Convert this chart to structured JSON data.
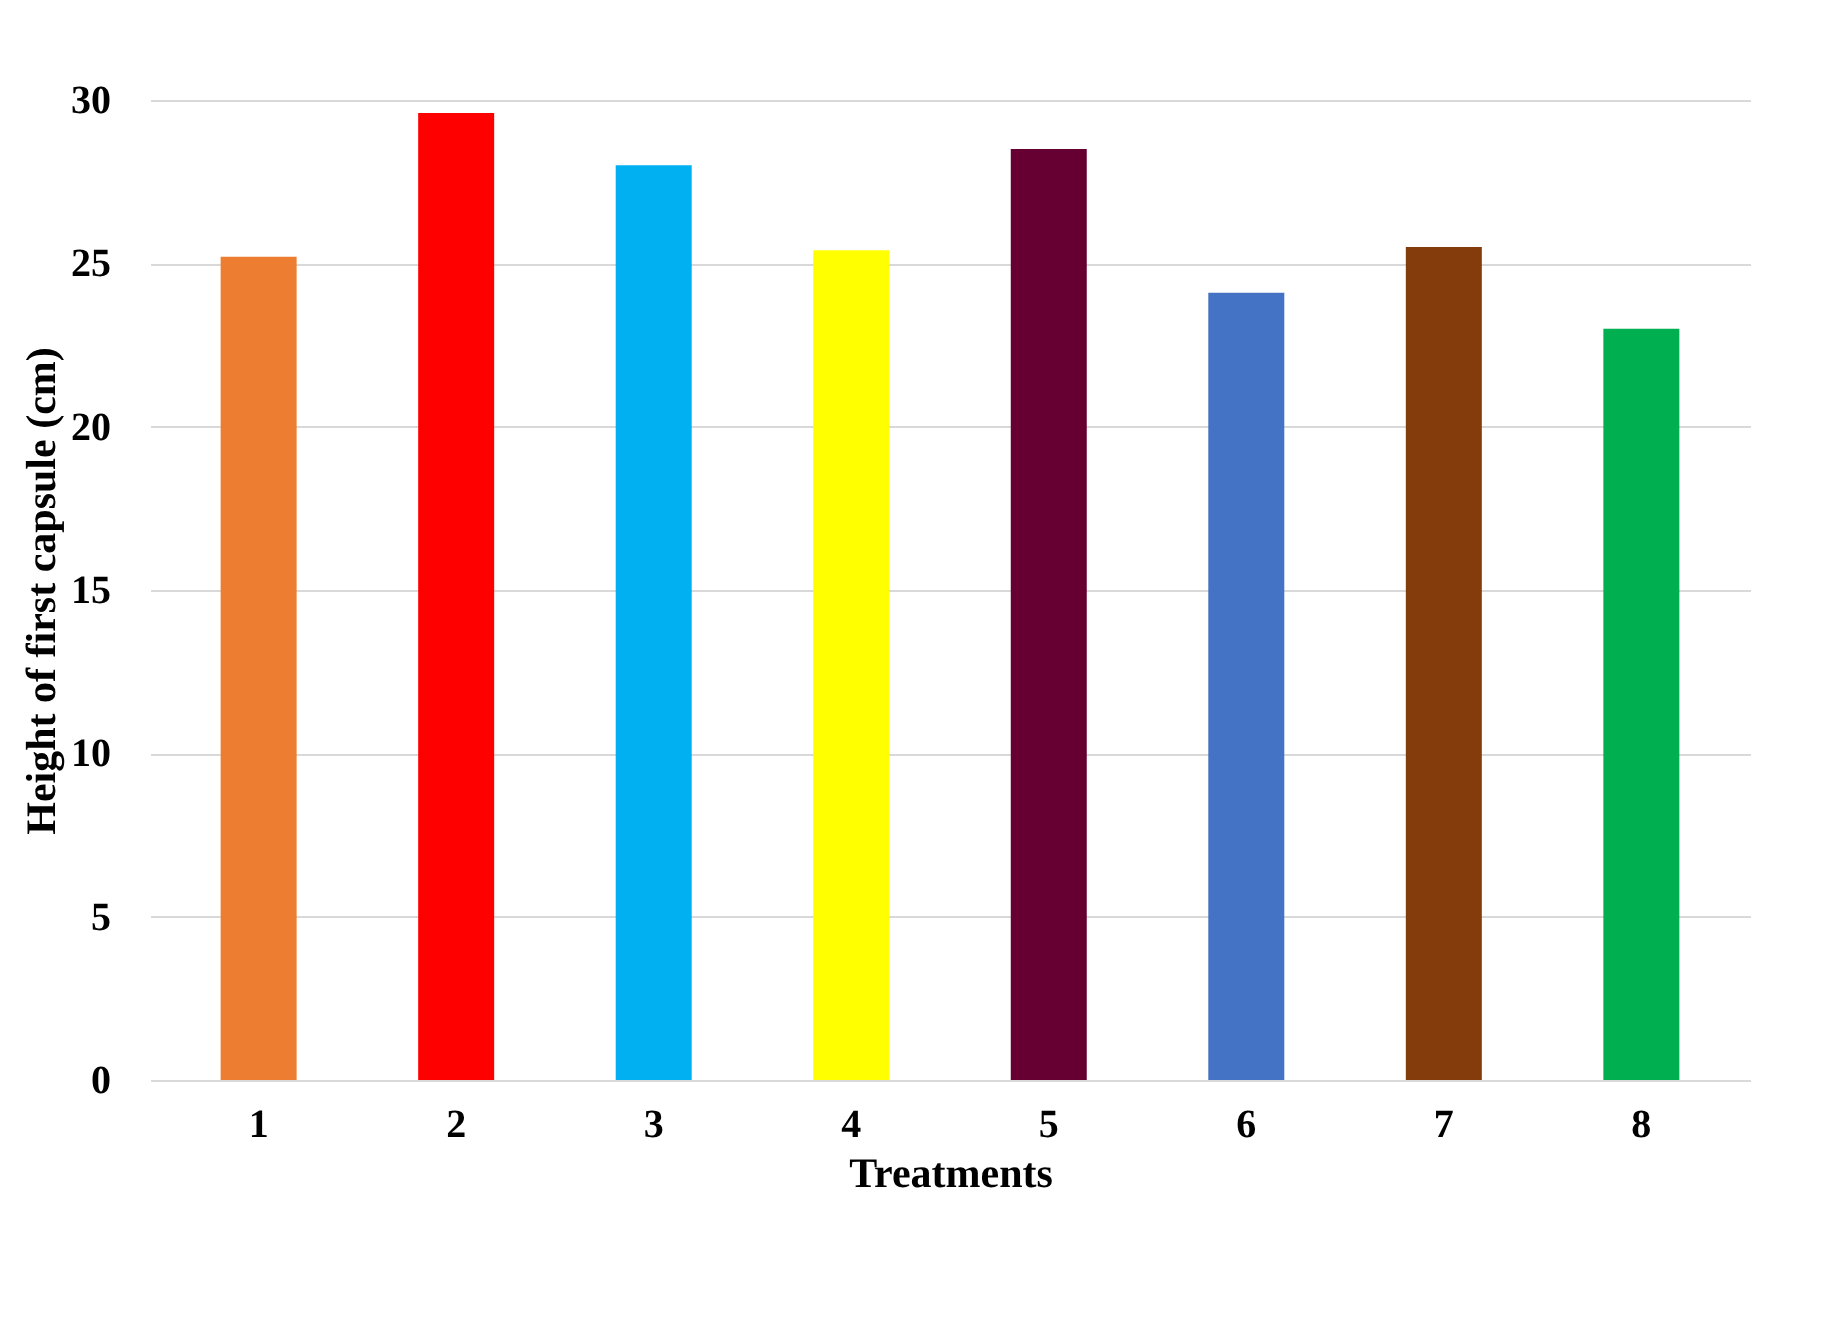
{
  "chart_data": {
    "type": "bar",
    "xlabel": "Treatments",
    "ylabel": "Height of first capsule (cm)",
    "categories": [
      "1",
      "2",
      "3",
      "4",
      "5",
      "6",
      "7",
      "8"
    ],
    "values": [
      25.2,
      29.6,
      28.0,
      25.4,
      28.5,
      24.1,
      25.5,
      23.0
    ],
    "colors": [
      "#ed7d31",
      "#ff0000",
      "#00b0f0",
      "#ffff00",
      "#660033",
      "#4472c4",
      "#843c0c",
      "#00b050"
    ],
    "ylim": [
      0,
      30
    ],
    "yticks": [
      0,
      5,
      10,
      15,
      20,
      25,
      30
    ],
    "grid": "y"
  }
}
